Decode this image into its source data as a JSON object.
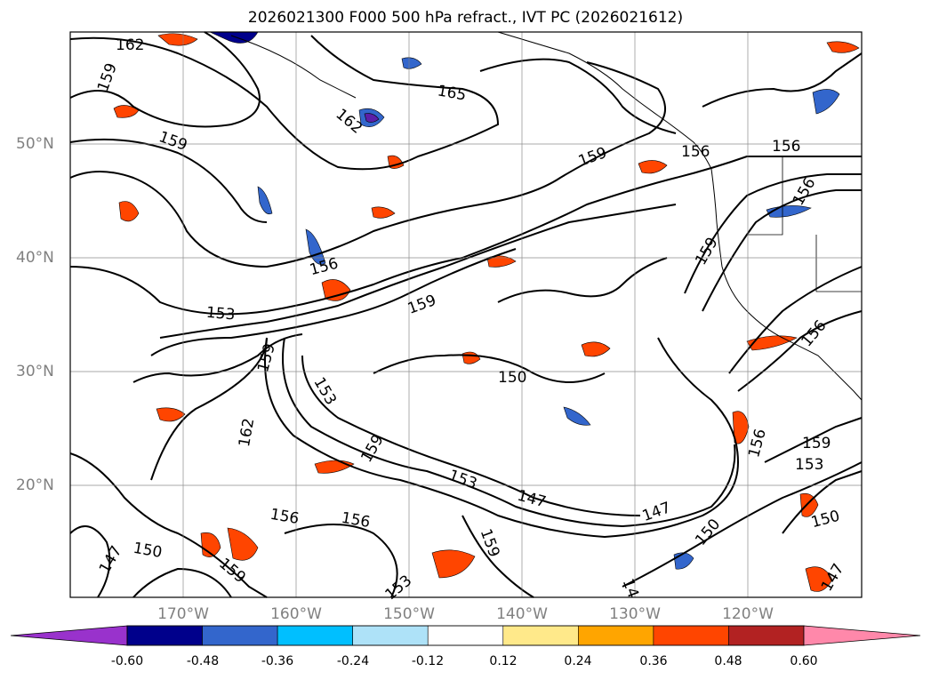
{
  "title": "2026021300 F000 500 hPa refract., IVT PC (2026021612)",
  "latitude_labels": [
    "50°N",
    "40°N",
    "30°N",
    "20°N"
  ],
  "longitude_labels": [
    "170°W",
    "160°W",
    "150°W",
    "140°W",
    "130°W",
    "120°W"
  ],
  "contour_labels": [
    "162",
    "159",
    "165",
    "162",
    "159",
    "159",
    "156",
    "156",
    "156",
    "159",
    "156",
    "153",
    "159",
    "150",
    "159",
    "153",
    "162",
    "159",
    "153",
    "147",
    "147",
    "150",
    "156",
    "156",
    "147",
    "150",
    "159",
    "153",
    "159",
    "150",
    "147",
    "14",
    "153",
    "159",
    "156",
    "156"
  ],
  "colorbar": {
    "ticks": [
      "-0.60",
      "-0.48",
      "-0.36",
      "-0.24",
      "-0.12",
      "0.12",
      "0.24",
      "0.36",
      "0.48",
      "0.60"
    ],
    "colors": {
      "under": "#9932cc",
      "bins": [
        "#00008b",
        "#3366cc",
        "#00bfff",
        "#aee2f8",
        "#ffffff",
        "#ffe98a",
        "#ffa500",
        "#ff4500",
        "#b22222"
      ],
      "over": "#ff88aa"
    }
  }
}
